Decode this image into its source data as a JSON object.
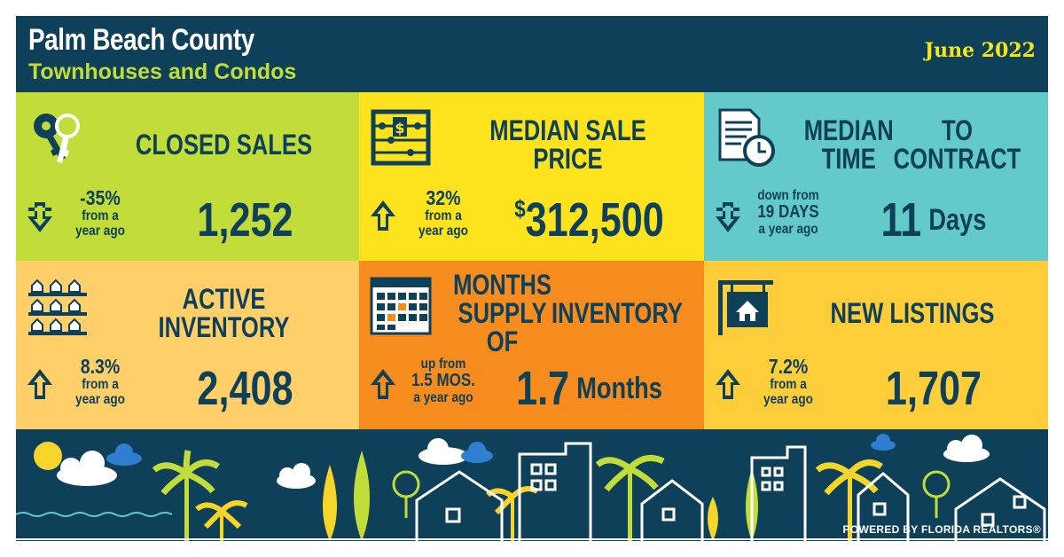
{
  "header": {
    "title": "Palm Beach County",
    "subtitle": "Townhouses and Condos",
    "date": "June 2022"
  },
  "tiles": [
    {
      "id": "closed-sales",
      "label": "CLOSED SALES",
      "direction": "down",
      "change_big": "-35%",
      "change_small": [
        "from a",
        "year ago"
      ],
      "value": "1,252",
      "icon": "keys-icon",
      "bg": "#c2dc3a"
    },
    {
      "id": "median-sale-price",
      "label": "MEDIAN SALE PRICE",
      "direction": "up",
      "change_big": "32%",
      "change_small": [
        "from a",
        "year ago"
      ],
      "currency": "$",
      "value": "312,500",
      "icon": "abacus-icon",
      "bg": "#fde21e"
    },
    {
      "id": "median-time",
      "label_lines": [
        "MEDIAN TIME",
        "TO CONTRACT"
      ],
      "direction": "down",
      "change_small_top": "down from",
      "change_big": "19 DAYS",
      "change_small": [
        "a year ago"
      ],
      "value": "11",
      "unit": "Days",
      "icon": "document-clock-icon",
      "bg": "#63cac9"
    },
    {
      "id": "active-inventory",
      "label": "ACTIVE INVENTORY",
      "direction": "up",
      "change_big": "8.3%",
      "change_small": [
        "from a",
        "year ago"
      ],
      "value": "2,408",
      "icon": "houses-rows-icon",
      "bg": "#ffcf6a"
    },
    {
      "id": "months-supply",
      "label_lines": [
        "MONTHS SUPPLY OF",
        "INVENTORY"
      ],
      "direction": "up",
      "change_small_top": "up from",
      "change_big": "1.5 MOS.",
      "change_small": [
        "a year ago"
      ],
      "value": "1.7",
      "unit": "Months",
      "icon": "calendar-icon",
      "bg": "#f68c1e"
    },
    {
      "id": "new-listings",
      "label": "NEW LISTINGS",
      "direction": "up",
      "change_big": "7.2%",
      "change_small": [
        "from a",
        "year ago"
      ],
      "value": "1,707",
      "icon": "house-sign-icon",
      "bg": "#fdcd3a"
    }
  ],
  "footer": {
    "powered": "POWERED BY FLORIDA REALTORS®"
  },
  "colors": {
    "navy": "#0f4059",
    "lime": "#c2dc3a",
    "yellow": "#fde21e",
    "teal": "#63cac9",
    "peach": "#ffcf6a",
    "orange": "#f68c1e",
    "gold": "#fdcd3a"
  }
}
